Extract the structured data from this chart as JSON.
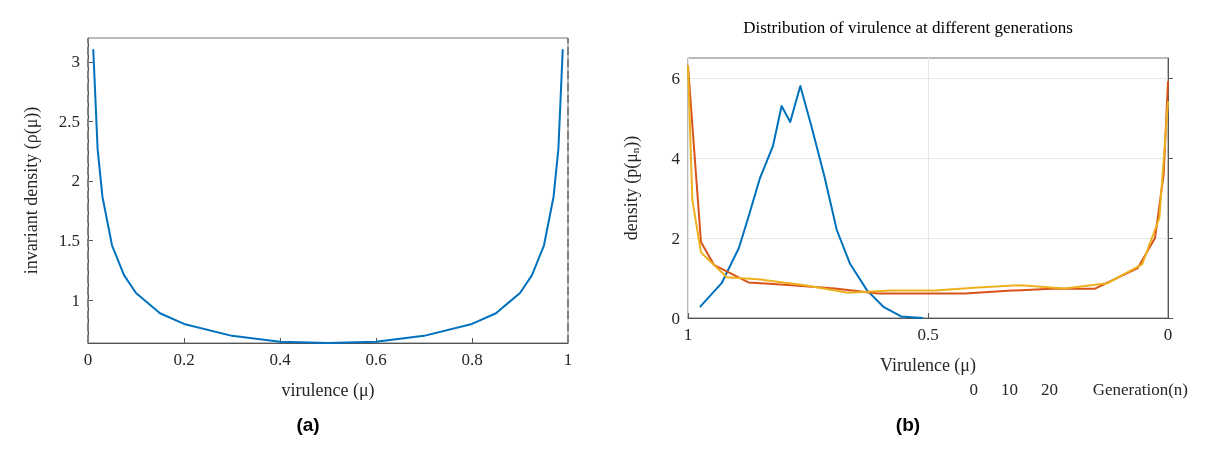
{
  "chart_data": [
    {
      "type": "line",
      "xlabel": "virulence (μ)",
      "ylabel": "invariant density (ρ(μ))",
      "x": [
        0.011,
        0.02,
        0.03,
        0.05,
        0.075,
        0.1,
        0.15,
        0.2,
        0.3,
        0.4,
        0.5,
        0.6,
        0.7,
        0.8,
        0.85,
        0.9,
        0.925,
        0.95,
        0.97,
        0.98,
        0.989
      ],
      "series": [
        {
          "color": "#0072bd",
          "values": [
            3.1,
            2.27,
            1.87,
            1.46,
            1.21,
            1.06,
            0.89,
            0.8,
            0.7,
            0.65,
            0.64,
            0.65,
            0.7,
            0.8,
            0.89,
            1.06,
            1.21,
            1.46,
            1.87,
            2.27,
            3.1
          ]
        }
      ],
      "xlim": [
        0,
        1
      ],
      "xticks": [
        0,
        0.2,
        0.4,
        0.6,
        0.8,
        1
      ],
      "ylim": [
        0.64,
        3.2
      ],
      "yticks": [
        1,
        1.5,
        2,
        2.5,
        3
      ],
      "ref_lines": [
        {
          "axis": "x",
          "value": 0,
          "color": "#808080",
          "line_style": "dashed"
        },
        {
          "axis": "x",
          "value": 1,
          "color": "#808080",
          "line_style": "dashed"
        }
      ],
      "grid": false,
      "marker": "none",
      "line_style": "solid",
      "annotations": [
        "(a)"
      ]
    },
    {
      "type": "line",
      "title": "Distribution of virulence at different generations",
      "xlabel": "Virulence (μ)",
      "ylabel": "density (p(μ$_{n}$))",
      "series": [
        {
          "color": "#0072bd",
          "x": [
            0.974,
            0.93,
            0.894,
            0.876,
            0.85,
            0.823,
            0.805,
            0.787,
            0.766,
            0.743,
            0.716,
            0.69,
            0.663,
            0.627,
            0.592,
            0.556,
            0.512
          ],
          "values": [
            0.29,
            0.87,
            1.75,
            2.45,
            3.5,
            4.3,
            5.3,
            4.9,
            5.8,
            4.8,
            3.55,
            2.2,
            1.37,
            0.69,
            0.27,
            0.04,
            0
          ]
        },
        {
          "color": "#d95319",
          "x": [
            1,
            0.973,
            0.946,
            0.874,
            0.784,
            0.694,
            0.604,
            0.514,
            0.423,
            0.333,
            0.243,
            0.153,
            0.063,
            0.027,
            0.009,
            0
          ],
          "values": [
            6.3,
            1.9,
            1.33,
            0.89,
            0.82,
            0.74,
            0.61,
            0.61,
            0.61,
            0.68,
            0.73,
            0.73,
            1.25,
            2.0,
            3.6,
            5.9
          ]
        },
        {
          "color": "#edb120",
          "x": [
            1,
            0.991,
            0.973,
            0.919,
            0.847,
            0.757,
            0.667,
            0.577,
            0.486,
            0.396,
            0.306,
            0.216,
            0.126,
            0.054,
            0.018,
            0
          ],
          "values": [
            6.3,
            2.96,
            1.64,
            1.02,
            0.96,
            0.82,
            0.63,
            0.69,
            0.69,
            0.76,
            0.82,
            0.74,
            0.87,
            1.34,
            2.5,
            5.4
          ]
        }
      ],
      "xlim": [
        1,
        0
      ],
      "xticks": [
        0,
        0.5,
        1
      ],
      "ylim": [
        0,
        6.5
      ],
      "yticks": [
        0,
        2,
        4,
        6
      ],
      "grid": true,
      "marker": "none",
      "line_style": "solid",
      "annotations": [
        "Generation(n)",
        "0",
        "10",
        "20",
        "(b)"
      ]
    }
  ]
}
